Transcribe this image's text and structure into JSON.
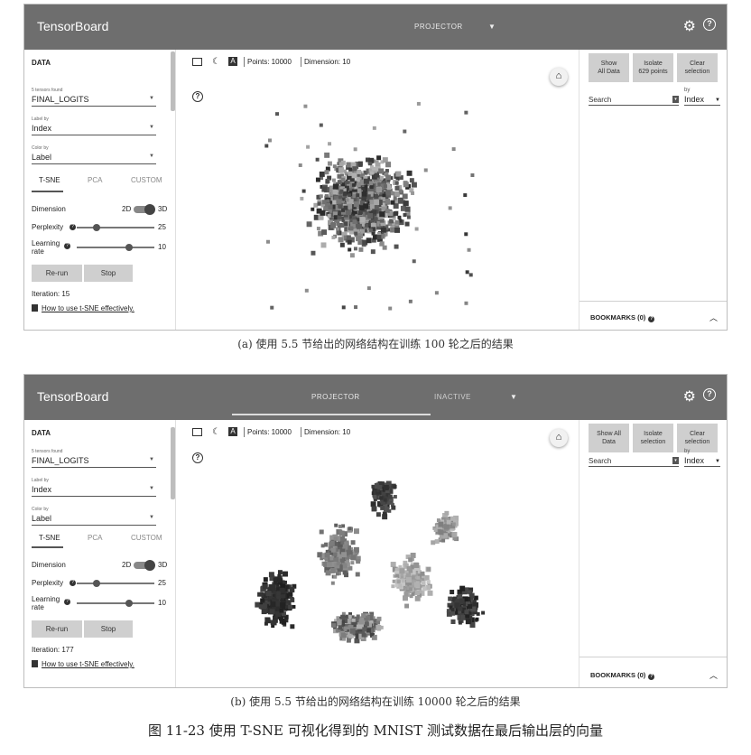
{
  "panels": [
    {
      "id": "a",
      "app_title": "TensorBoard",
      "tabs": [
        "PROJECTOR"
      ],
      "data_section_title": "DATA",
      "tensors_found_label": "5 tensors found",
      "tensor_value": "FINAL_LOGITS",
      "label_by_label": "Label by",
      "label_by_value": "Index",
      "color_by_label": "Color by",
      "color_by_value": "Label",
      "method_tabs": [
        "T-SNE",
        "PCA",
        "CUSTOM"
      ],
      "dimension_label": "Dimension",
      "dim_2d": "2D",
      "dim_3d": "3D",
      "perplexity_label": "Perplexity",
      "perplexity_value": "25",
      "perplexity_fraction": 0.22,
      "learning_label_1": "Learning",
      "learning_label_2": "rate",
      "learning_value": "10",
      "learning_fraction": 0.68,
      "rerun_label": "Re-run",
      "stop_label": "Stop",
      "iteration_text": "Iteration: 15",
      "howto_link": "How to use t-SNE effectively.",
      "points_text": "Points: 10000",
      "dimension_text": "Dimension: 10",
      "show_all_label": [
        "Show",
        "All Data"
      ],
      "isolate_label": [
        "Isolate",
        "629 points"
      ],
      "clear_label": [
        "Clear",
        "selection"
      ],
      "search_placeholder": "Search",
      "by_label": "by",
      "by_value": "Index",
      "bookmarks_label": "BOOKMARKS (0)"
    },
    {
      "id": "b",
      "app_title": "TensorBoard",
      "tabs": [
        "PROJECTOR",
        "INACTIVE"
      ],
      "data_section_title": "DATA",
      "tensors_found_label": "5 tensors found",
      "tensor_value": "FINAL_LOGITS",
      "label_by_label": "Label by",
      "label_by_value": "Index",
      "color_by_label": "Color by",
      "color_by_value": "Label",
      "method_tabs": [
        "T-SNE",
        "PCA",
        "CUSTOM"
      ],
      "dimension_label": "Dimension",
      "dim_2d": "2D",
      "dim_3d": "3D",
      "perplexity_label": "Perplexity",
      "perplexity_value": "25",
      "perplexity_fraction": 0.22,
      "learning_label_1": "Learning",
      "learning_label_2": "rate",
      "learning_value": "10",
      "learning_fraction": 0.68,
      "rerun_label": "Re-run",
      "stop_label": "Stop",
      "iteration_text": "Iteration: 177",
      "howto_link": "How to use t-SNE effectively.",
      "points_text": "Points: 10000",
      "dimension_text": "Dimension: 10",
      "show_all_label": [
        "Show All",
        "Data"
      ],
      "isolate_label": [
        "Isolate",
        "selection"
      ],
      "clear_label": [
        "Clear",
        "selection"
      ],
      "search_placeholder": "Search",
      "by_label": "by",
      "by_value": "Index",
      "bookmarks_label": "BOOKMARKS (0)"
    }
  ],
  "captions": {
    "a": "(a) 使用 5.5 节给出的网络结构在训练 100 轮之后的结果",
    "b": "(b) 使用 5.5 节给出的网络结构在训练 10000 轮之后的结果",
    "figure": "图 11-23   使用 T-SNE 可视化得到的 MNIST 测试数据在最后输出层的向量"
  },
  "icons": {
    "gear": "gear-icon",
    "help": "help-icon",
    "home": "home-icon",
    "night": "moon-icon",
    "label_toggle": "label-a-icon",
    "box_select": "box-select-icon",
    "book": "book-icon",
    "search": "search-icon"
  }
}
